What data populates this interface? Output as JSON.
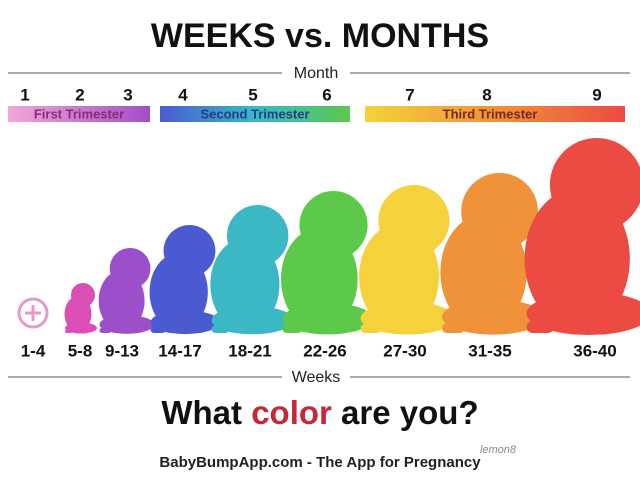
{
  "title": "WEEKS vs. MONTHS",
  "month_label": "Month",
  "months": [
    "1",
    "2",
    "3",
    "4",
    "5",
    "6",
    "7",
    "8",
    "9"
  ],
  "trimesters": [
    "First Trimester",
    "Second Trimester",
    "Third Trimester"
  ],
  "weeks": [
    "1-4",
    "5-8",
    "9-13",
    "14-17",
    "18-21",
    "22-26",
    "27-30",
    "31-35",
    "36-40"
  ],
  "weeks_label": "Weeks",
  "tagline": [
    "What ",
    "color",
    " are you?"
  ],
  "footer": "BabyBumpApp.com - The App for Pregnancy",
  "watermark": "lemon8"
}
